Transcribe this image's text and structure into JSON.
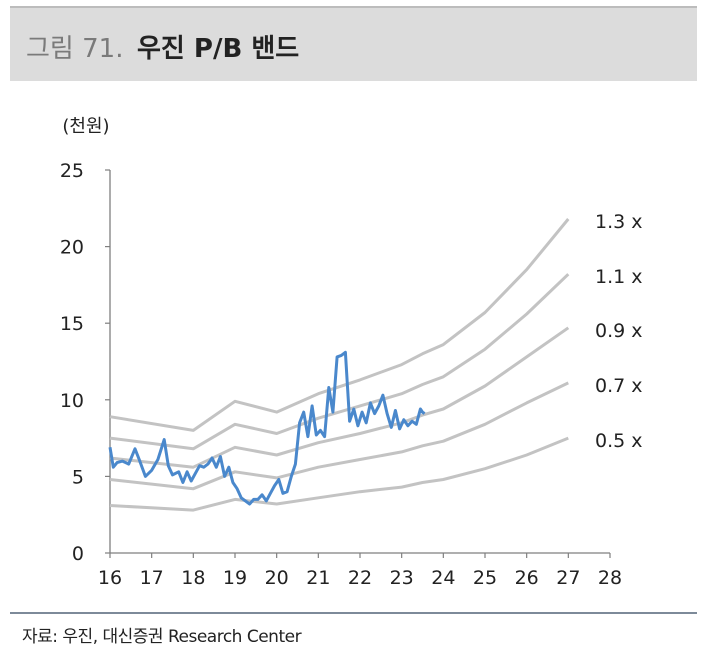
{
  "title": {
    "prefix": "그림 71.",
    "main": "우진 P/B 밴드"
  },
  "source": "자료: 우진, 대신증권 Research Center",
  "colors": {
    "band": "#c3c3c3",
    "price": "#4a88cc",
    "axis": "#7f7f7f",
    "title_bg": "#dcdcdc"
  },
  "chart_data": {
    "type": "line",
    "ylabel": "(천원)",
    "xlim": [
      16,
      28
    ],
    "ylim": [
      0,
      25
    ],
    "x_ticks": [
      "16",
      "17",
      "18",
      "19",
      "20",
      "21",
      "22",
      "23",
      "24",
      "25",
      "26",
      "27",
      "28"
    ],
    "y_ticks": [
      "0",
      "5",
      "10",
      "15",
      "20",
      "25"
    ],
    "grid": false,
    "series": [
      {
        "name": "1.3 x",
        "type": "band",
        "x": [
          16,
          18,
          19,
          20,
          21,
          22,
          23,
          23.5,
          24,
          25,
          26,
          27
        ],
        "values": [
          8.9,
          8.0,
          9.9,
          9.2,
          10.4,
          11.3,
          12.3,
          13.0,
          13.6,
          15.7,
          18.5,
          21.8
        ]
      },
      {
        "name": "1.1 x",
        "type": "band",
        "x": [
          16,
          18,
          19,
          20,
          21,
          22,
          23,
          23.5,
          24,
          25,
          26,
          27
        ],
        "values": [
          7.5,
          6.8,
          8.4,
          7.8,
          8.8,
          9.6,
          10.4,
          11.0,
          11.5,
          13.3,
          15.6,
          18.2
        ]
      },
      {
        "name": "0.9 x",
        "type": "band",
        "x": [
          16,
          18,
          19,
          20,
          21,
          22,
          23,
          23.5,
          24,
          25,
          26,
          27
        ],
        "values": [
          6.2,
          5.6,
          6.9,
          6.4,
          7.2,
          7.8,
          8.5,
          9.0,
          9.4,
          10.9,
          12.8,
          14.7
        ]
      },
      {
        "name": "0.7 x",
        "type": "band",
        "x": [
          16,
          18,
          19,
          20,
          21,
          22,
          23,
          23.5,
          24,
          25,
          26,
          27
        ],
        "values": [
          4.8,
          4.2,
          5.3,
          4.9,
          5.6,
          6.1,
          6.6,
          7.0,
          7.3,
          8.4,
          9.8,
          11.1
        ]
      },
      {
        "name": "0.5 x",
        "type": "band",
        "x": [
          16,
          18,
          19,
          20,
          21,
          22,
          23,
          23.5,
          24,
          25,
          26,
          27
        ],
        "values": [
          3.1,
          2.8,
          3.5,
          3.2,
          3.6,
          4.0,
          4.3,
          4.6,
          4.8,
          5.5,
          6.4,
          7.5
        ]
      },
      {
        "type": "price",
        "x": [
          16.0,
          16.08,
          16.17,
          16.3,
          16.45,
          16.6,
          16.7,
          16.85,
          17.0,
          17.15,
          17.3,
          17.4,
          17.5,
          17.65,
          17.75,
          17.85,
          17.95,
          18.05,
          18.15,
          18.25,
          18.35,
          18.45,
          18.55,
          18.65,
          18.75,
          18.85,
          18.95,
          19.05,
          19.15,
          19.25,
          19.35,
          19.45,
          19.55,
          19.65,
          19.75,
          19.85,
          19.95,
          20.05,
          20.15,
          20.25,
          20.35,
          20.45,
          20.55,
          20.65,
          20.75,
          20.85,
          20.95,
          21.05,
          21.15,
          21.25,
          21.35,
          21.45,
          21.55,
          21.65,
          21.75,
          21.85,
          21.95,
          22.05,
          22.15,
          22.25,
          22.35,
          22.45,
          22.55,
          22.65,
          22.75,
          22.85,
          22.95,
          23.05,
          23.15,
          23.25,
          23.35,
          23.45,
          23.5,
          23.55
        ],
        "values": [
          6.9,
          5.6,
          5.9,
          6.0,
          5.8,
          6.8,
          6.1,
          5.0,
          5.4,
          6.1,
          7.4,
          5.7,
          5.1,
          5.3,
          4.6,
          5.3,
          4.7,
          5.2,
          5.7,
          5.6,
          5.8,
          6.2,
          5.6,
          6.3,
          5.0,
          5.6,
          4.6,
          4.2,
          3.6,
          3.4,
          3.2,
          3.5,
          3.5,
          3.8,
          3.4,
          3.9,
          4.4,
          4.8,
          3.9,
          4.0,
          5.0,
          5.8,
          8.5,
          9.2,
          7.6,
          9.6,
          7.7,
          8.0,
          7.6,
          10.8,
          9.2,
          12.8,
          12.9,
          13.1,
          8.6,
          9.4,
          8.3,
          9.2,
          8.5,
          9.8,
          9.1,
          9.6,
          10.3,
          9.1,
          8.2,
          9.3,
          8.1,
          8.7,
          8.3,
          8.6,
          8.4,
          9.4,
          9.2,
          9.1
        ]
      }
    ]
  }
}
